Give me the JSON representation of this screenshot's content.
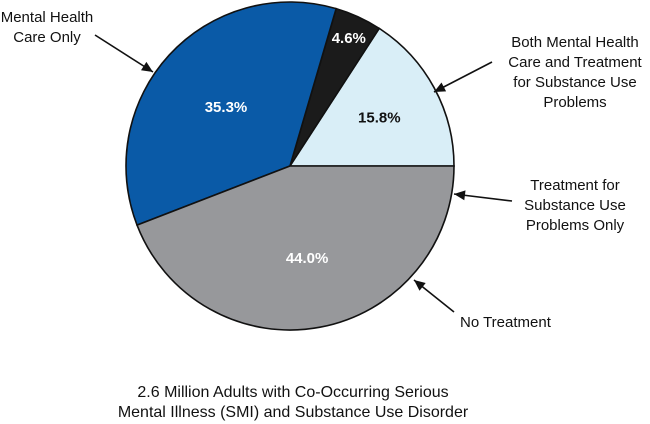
{
  "chart_data": {
    "type": "pie",
    "slices": [
      {
        "label": "Both Mental Health Care and Treatment for Substance Use Problems",
        "label_lines": [
          "Both Mental Health",
          "Care and Treatment",
          "for Substance Use",
          "Problems"
        ],
        "value": 15.8,
        "value_label": "15.8%",
        "color": "#d9eef7"
      },
      {
        "label": "Treatment for Substance Use Problems Only",
        "label_lines": [
          "Treatment for",
          "Substance Use",
          "Problems Only"
        ],
        "value": 4.6,
        "value_label": "4.6%",
        "color": "#1b1b1b"
      },
      {
        "label": "No Treatment",
        "label_lines": [
          "No Treatment"
        ],
        "value": 35.3,
        "value_label": "35.3%",
        "color": "#0a5aa7"
      },
      {
        "label": "Mental Health Care Only",
        "label_lines": [
          "Mental Health",
          "Care Only"
        ],
        "value": 44.0,
        "value_label": "44.0%",
        "color": "#97989b"
      }
    ],
    "caption_lines": [
      "2.6 Million Adults with Co-Occurring Serious",
      "Mental Illness (SMI) and Substance Use Disorder"
    ]
  }
}
